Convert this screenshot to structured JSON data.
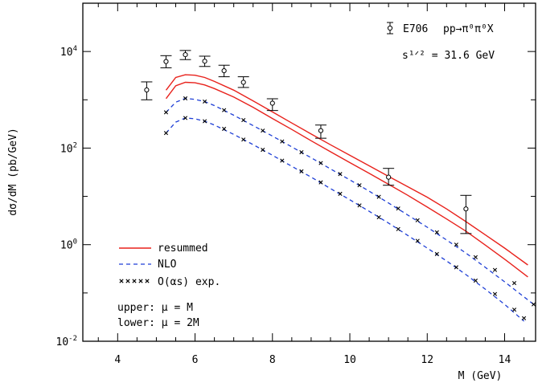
{
  "chart_data": {
    "type": "line",
    "xlabel": "M (GeV)",
    "ylabel": "dσ/dM (pb/GeV)",
    "xlim": [
      3.1,
      14.8
    ],
    "ylim": [
      0.01,
      100000
    ],
    "yscale": "log",
    "grid": false,
    "x_ticks": [
      "4",
      "6",
      "8",
      "10",
      "12",
      "14"
    ],
    "y_ticks": [
      {
        "mant": "10",
        "exp": "-2",
        "value": 0.01
      },
      {
        "mant": "10",
        "exp": "0",
        "value": 1
      },
      {
        "mant": "10",
        "exp": "2",
        "value": 100
      },
      {
        "mant": "10",
        "exp": "4",
        "value": 10000
      }
    ],
    "annotations": {
      "experiment": "E706",
      "process": "pp→π⁰π⁰X",
      "energy": "s¹ᐟ² = 31.6 GeV",
      "upper": "upper: μ = M",
      "lower": "lower: μ = 2M"
    },
    "legend": {
      "placement": "bottom-left",
      "entries": [
        {
          "label": "resummed",
          "style": "solid",
          "color": "#e8221c"
        },
        {
          "label": "NLO",
          "style": "dashed",
          "color": "#1f3fd6"
        },
        {
          "label": "O(αs) exp.",
          "style": "markers",
          "color": "#000000"
        }
      ]
    },
    "series": [
      {
        "label_ref": 0,
        "band": "upper",
        "style": "solid",
        "color": "#e8221c",
        "x": [
          5.25,
          5.5,
          5.75,
          6.0,
          6.25,
          6.5,
          7.0,
          7.5,
          8.0,
          8.5,
          9.0,
          9.5,
          10.0,
          10.5,
          11.0,
          11.5,
          12.0,
          12.5,
          13.0,
          13.5,
          14.0,
          14.6
        ],
        "y": [
          1580,
          2900,
          3300,
          3230,
          2900,
          2400,
          1580,
          950,
          560,
          330,
          196,
          117,
          71,
          43,
          26,
          15.8,
          9.6,
          5.5,
          3.0,
          1.6,
          0.85,
          0.38
        ]
      },
      {
        "label_ref": 0,
        "band": "lower",
        "style": "solid",
        "color": "#e8221c",
        "x": [
          5.25,
          5.5,
          5.75,
          6.0,
          6.25,
          6.5,
          7.0,
          7.5,
          8.0,
          8.5,
          9.0,
          9.5,
          10.0,
          10.5,
          11.0,
          11.5,
          12.0,
          12.5,
          13.0,
          13.5,
          14.0,
          14.6
        ],
        "y": [
          1060,
          1950,
          2300,
          2250,
          2030,
          1710,
          1140,
          700,
          410,
          243,
          142,
          84,
          50,
          30,
          17.8,
          10.5,
          6.0,
          3.4,
          1.9,
          0.98,
          0.5,
          0.215
        ]
      },
      {
        "label_ref": 1,
        "band": "upper",
        "style": "dashed",
        "color": "#1f3fd6",
        "x": [
          5.25,
          5.5,
          5.75,
          6.0,
          6.25,
          6.5,
          7.0,
          7.5,
          8.0,
          8.5,
          9.0,
          9.5,
          10.0,
          10.5,
          11.0,
          11.5,
          12.0,
          12.5,
          13.0,
          13.5,
          14.0,
          14.75
        ],
        "y": [
          550,
          890,
          1070,
          1020,
          920,
          760,
          480,
          292,
          177,
          106,
          63,
          37,
          22,
          12.8,
          7.3,
          4.1,
          2.3,
          1.25,
          0.67,
          0.34,
          0.17,
          0.058
        ]
      },
      {
        "label_ref": 1,
        "band": "lower",
        "style": "dashed",
        "color": "#1f3fd6",
        "x": [
          5.25,
          5.5,
          5.75,
          6.0,
          6.25,
          6.5,
          7.0,
          7.5,
          8.0,
          8.5,
          9.0,
          9.5,
          10.0,
          10.5,
          11.0,
          11.5,
          12.0,
          12.5,
          13.0,
          13.5,
          14.0,
          14.5
        ],
        "y": [
          205,
          345,
          420,
          405,
          360,
          300,
          192,
          118,
          71,
          42,
          25,
          14.5,
          8.5,
          4.9,
          2.8,
          1.55,
          0.85,
          0.46,
          0.24,
          0.12,
          0.058,
          0.026
        ]
      },
      {
        "label_ref": 2,
        "band": "upper",
        "style": "markers",
        "color": "#000000",
        "x": [
          5.25,
          5.75,
          6.25,
          6.75,
          7.25,
          7.75,
          8.25,
          8.75,
          9.25,
          9.75,
          10.25,
          10.75,
          11.25,
          11.75,
          12.25,
          12.75,
          13.25,
          13.75,
          14.25,
          14.75
        ],
        "y": [
          550,
          1070,
          920,
          610,
          380,
          230,
          137,
          82,
          49,
          29,
          17,
          9.8,
          5.6,
          3.2,
          1.8,
          1.0,
          0.55,
          0.3,
          0.16,
          0.058
        ]
      },
      {
        "label_ref": 2,
        "band": "lower",
        "style": "markers",
        "color": "#000000",
        "x": [
          5.25,
          5.75,
          6.25,
          6.75,
          7.25,
          7.75,
          8.25,
          8.75,
          9.25,
          9.75,
          10.25,
          10.75,
          11.25,
          11.75,
          12.25,
          12.75,
          13.25,
          13.75,
          14.25,
          14.5
        ],
        "y": [
          205,
          420,
          360,
          250,
          150,
          92,
          55,
          33,
          19.5,
          11.3,
          6.5,
          3.7,
          2.1,
          1.2,
          0.64,
          0.34,
          0.18,
          0.095,
          0.045,
          0.03
        ]
      }
    ],
    "data_points": {
      "name": "E706",
      "x": [
        4.75,
        5.25,
        5.75,
        6.25,
        6.75,
        7.25,
        8.0,
        9.25,
        11.0,
        13.0
      ],
      "y": [
        1600,
        6200,
        8600,
        6300,
        4000,
        2300,
        850,
        230,
        25,
        5.5
      ],
      "y_low": [
        1000,
        4600,
        6800,
        4900,
        3000,
        1800,
        600,
        160,
        17,
        1.7
      ],
      "y_high": [
        2350,
        8200,
        10500,
        8000,
        5200,
        3000,
        1050,
        300,
        38,
        10.5
      ]
    }
  }
}
